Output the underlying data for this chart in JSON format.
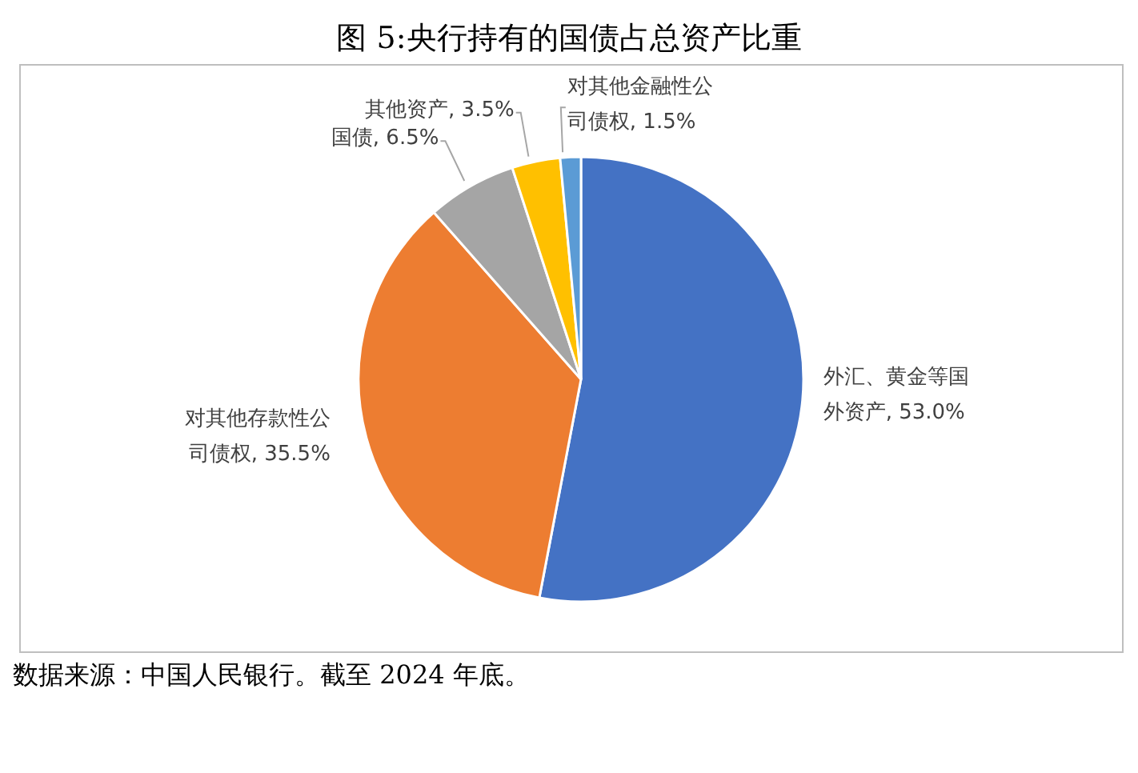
{
  "chart_data": {
    "type": "pie",
    "title": "图 5:央行持有的国债占总资产比重",
    "categories": [
      "外汇、黄金等国外资产",
      "对其他存款性公司债权",
      "国债",
      "其他资产",
      "对其他金融性公司债权"
    ],
    "values": [
      53.0,
      35.5,
      6.5,
      3.5,
      1.5
    ],
    "value_labels": [
      "53.0%",
      "35.5%",
      "6.5%",
      "3.5%",
      "1.5%"
    ],
    "colors": [
      "#4472c4",
      "#ed7d31",
      "#a5a5a5",
      "#ffc000",
      "#5b9bd5"
    ],
    "legend": false,
    "annotations": [
      "数据来源：中国人民银行。截至 2024 年底。"
    ]
  }
}
